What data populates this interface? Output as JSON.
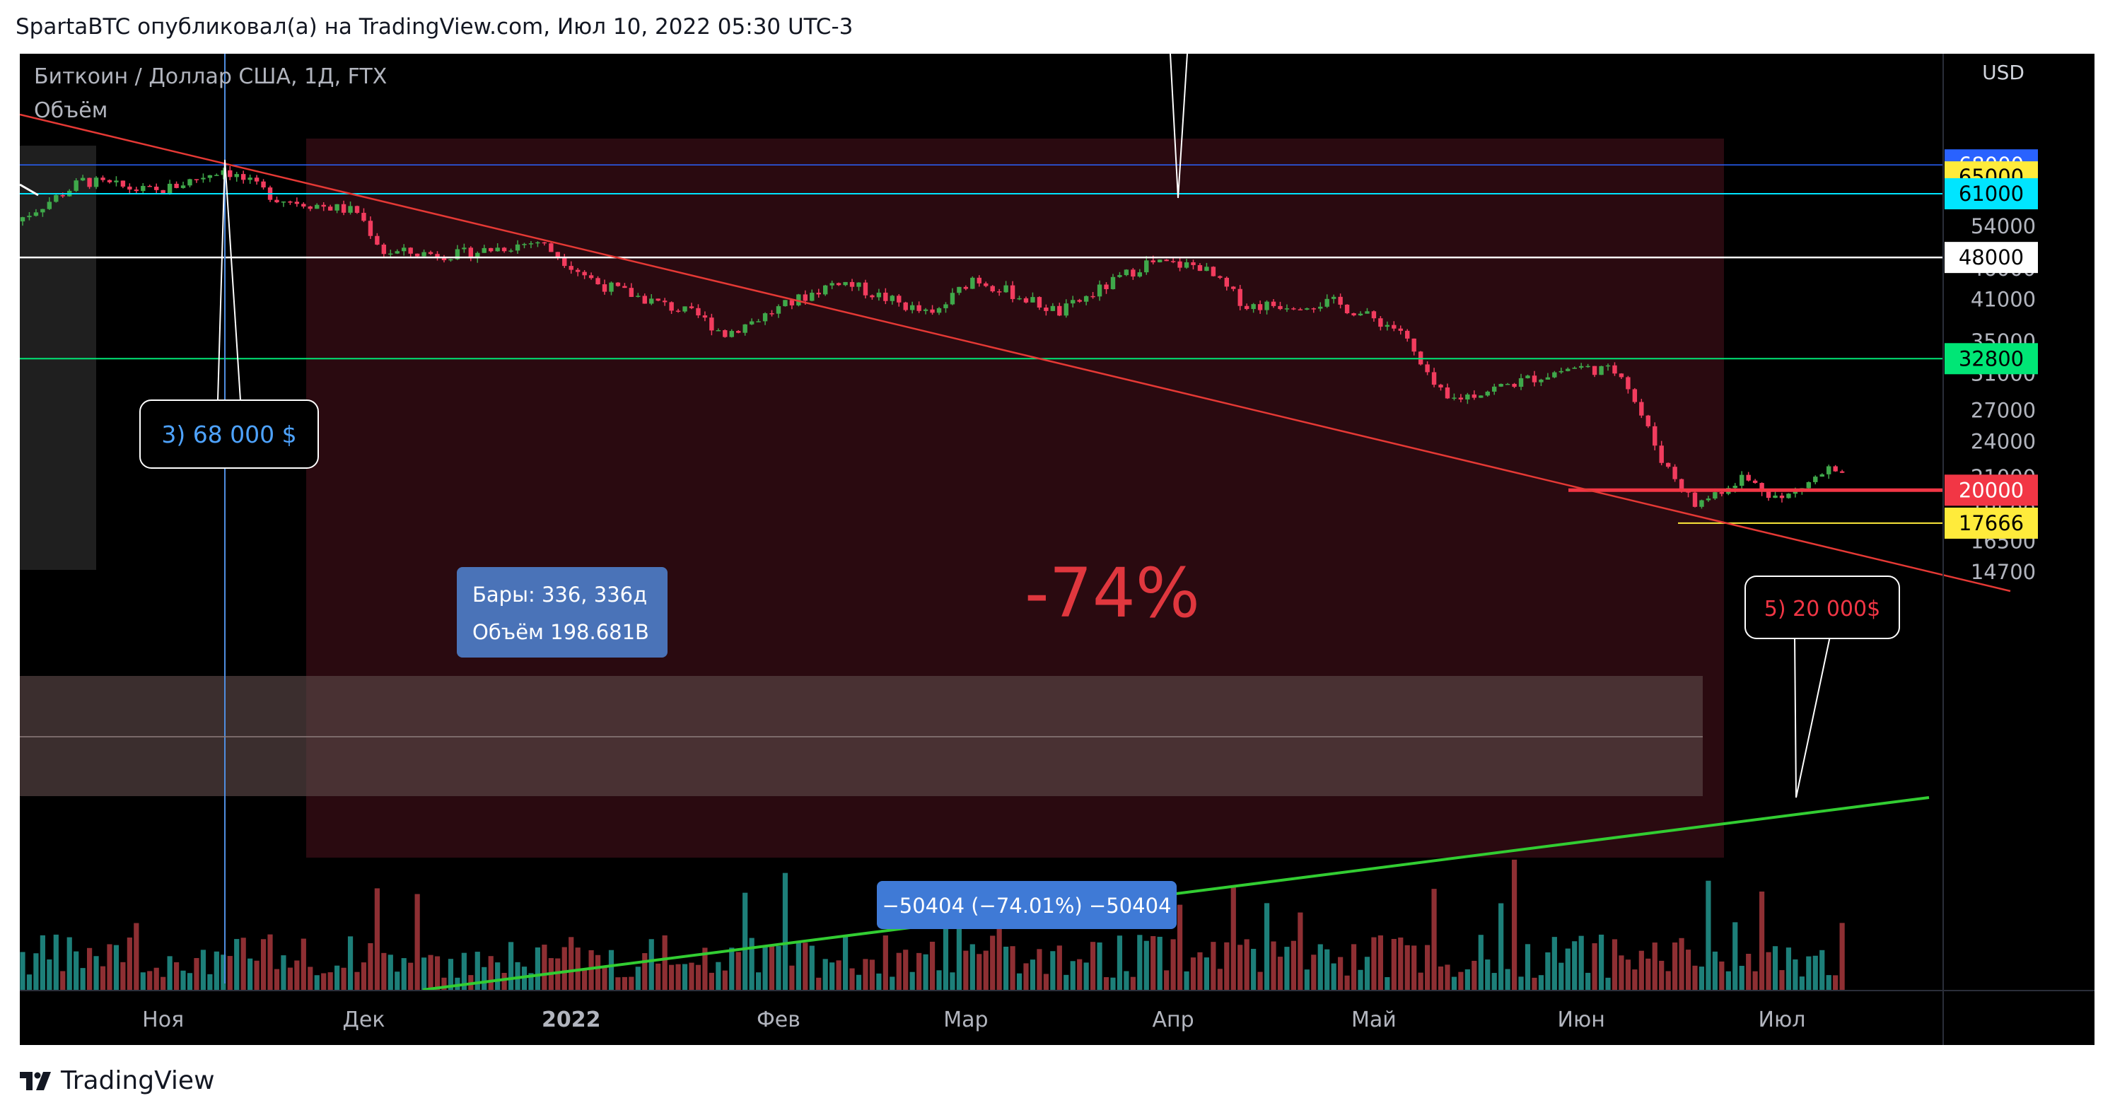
{
  "header": {
    "publisher_line": "SpartaBTC опубликовал(а) на TradingView.com, Июл 10, 2022 05:30 UTC-3"
  },
  "legend": {
    "symbol": "Биткоин / Доллар США, 1Д, FTX",
    "volume_label": "Объём"
  },
  "colors": {
    "up": "#26a69a",
    "down": "#ef5350",
    "candle_up": "#3fa84a",
    "candle_down": "#f23c5e",
    "background": "#000000"
  },
  "footer": {
    "brand": "TradingView"
  },
  "chart_data": {
    "type": "candlestick",
    "currency": "USD",
    "x_axis": {
      "tick_labels": [
        "Ноя",
        "Дек",
        "2022",
        "Фев",
        "Мар",
        "Апр",
        "Май",
        "Июн",
        "Июл"
      ]
    },
    "y_axis": {
      "scale": "log",
      "range": [
        13800,
        85000
      ],
      "tick_labels": [
        "54000",
        "46000",
        "41000",
        "35000",
        "31000",
        "27000",
        "24000",
        "21000",
        "18500",
        "16500",
        "14700"
      ]
    },
    "price_levels": [
      {
        "value": "68000",
        "color": "#2962ff"
      },
      {
        "value": "65000",
        "color": "#ffeb3b"
      },
      {
        "value": "61000",
        "color": "#00e5ff"
      },
      {
        "value": "48000",
        "color": "#ffffff"
      },
      {
        "value": "32800",
        "color": "#00e676"
      },
      {
        "value": "20000",
        "color": "#f23645"
      },
      {
        "value": "17666",
        "color": "#ffeb3b"
      }
    ],
    "annotations": {
      "callout_top": "3) 68 000 $",
      "callout_bottom": "5) 20 000$",
      "percent_drop": "-74%",
      "range_bars": "Бары: 336, 336д",
      "range_volume": "Объём 198.681B",
      "range_change": "−50404 (−74.01%) −50404"
    },
    "series": [
      {
        "name": "",
        "kind": "close_path",
        "points": [
          [
            "2021-10-10",
            55000
          ],
          [
            "2021-10-20",
            64000
          ],
          [
            "2021-10-31",
            61300
          ],
          [
            "2021-11-10",
            67000
          ],
          [
            "2021-11-18",
            60000
          ],
          [
            "2021-11-30",
            57000
          ],
          [
            "2021-12-04",
            49000
          ],
          [
            "2021-12-15",
            48500
          ],
          [
            "2021-12-27",
            51000
          ],
          [
            "2022-01-05",
            43500
          ],
          [
            "2022-01-20",
            38500
          ],
          [
            "2022-01-24",
            36000
          ],
          [
            "2022-02-10",
            44000
          ],
          [
            "2022-02-24",
            38500
          ],
          [
            "2022-03-02",
            44500
          ],
          [
            "2022-03-15",
            39000
          ],
          [
            "2022-03-28",
            47000
          ],
          [
            "2022-04-05",
            46500
          ],
          [
            "2022-04-12",
            40000
          ],
          [
            "2022-04-25",
            40500
          ],
          [
            "2022-05-05",
            36500
          ],
          [
            "2022-05-09",
            30500
          ],
          [
            "2022-05-12",
            28000
          ],
          [
            "2022-05-31",
            31800
          ],
          [
            "2022-06-07",
            31200
          ],
          [
            "2022-06-13",
            22500
          ],
          [
            "2022-06-18",
            18900
          ],
          [
            "2022-06-25",
            21000
          ],
          [
            "2022-07-01",
            19300
          ],
          [
            "2022-07-08",
            21600
          ],
          [
            "2022-07-10",
            20900
          ]
        ]
      }
    ]
  }
}
